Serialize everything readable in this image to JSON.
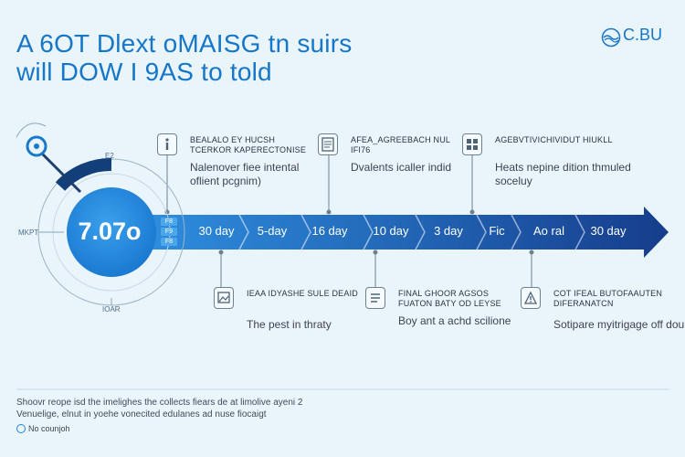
{
  "header": {
    "title_line1": "A 6OT Dlext oMAISG tn suirs",
    "title_line2": "will DOW I 9AS to told"
  },
  "logo": {
    "text": "C.BU",
    "tagline": ""
  },
  "dial": {
    "value": "7.07o",
    "badges": [
      "F8",
      "F9",
      "F8"
    ],
    "left_label": "MKPT",
    "top_label": "E2",
    "bottom_label": "IOAR"
  },
  "timeline": {
    "segments": [
      "30 day",
      "5-day",
      "16 day",
      "10 day",
      "3 day",
      "Fic",
      "Ao ral",
      "30 day"
    ]
  },
  "milestones": {
    "top": [
      {
        "icon": "info-icon",
        "heading": "BEALALO EY HUCSH TCERKOR KAPERECTONISE",
        "desc": "Nalenover fiee intental oflient pcgnim)"
      },
      {
        "icon": "document-icon",
        "heading": "AFEA_AGREEBACH NUL IfI76",
        "desc": "Dvalents icaller indid"
      },
      {
        "icon": "grid-icon",
        "heading": "AGEBVTIVICHIVIDUT HIUKLL",
        "desc": "Heats nepine dition thmuled soceluy"
      }
    ],
    "bottom": [
      {
        "icon": "image-icon",
        "heading": "IEAA IDYASHE SULE DEAID",
        "desc": "The pest in thraty"
      },
      {
        "icon": "list-icon",
        "heading": "FINAL GHOOR AGSOS FUATON BATY OD LEYSE",
        "desc": "Boy ant a achd scilione"
      },
      {
        "icon": "warning-icon",
        "heading": "COT IFEAL BUTOFAAUTEN DIFERANATCN",
        "desc": "Sotipare myitrigage off doun"
      }
    ]
  },
  "footer": {
    "note": "Shoovr reope isd the imelighes the collects fiears de at limolive ayeni 2 Venuelige, elnut in yoehe vonecited edulanes ad nuse fiocaigt",
    "legend_label": "No counjoh"
  },
  "colors": {
    "background": "#eaf4fb",
    "accent": "#1677c8",
    "arrow_start": "#2f8fe0",
    "arrow_end": "#163d8c",
    "dial_fill": "#1e8be0"
  }
}
